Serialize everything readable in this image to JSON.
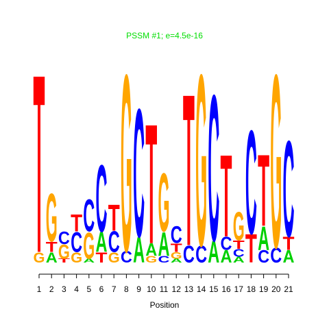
{
  "chart_data": {
    "type": "logo",
    "title": "PSSM #1; e=4.5e-16",
    "x_label": "Position",
    "xlim": [
      1,
      21
    ],
    "xticks": [
      1,
      2,
      3,
      4,
      5,
      6,
      7,
      8,
      9,
      10,
      11,
      12,
      13,
      14,
      15,
      16,
      17,
      18,
      19,
      20,
      21
    ],
    "ylim": [
      0,
      2
    ],
    "colors": {
      "A": "#00d000",
      "C": "#0000ff",
      "G": "#ffa500",
      "T": "#ff0000"
    },
    "title_color": "#00dd00",
    "x": [
      1,
      2,
      3,
      4,
      5,
      6,
      7,
      8,
      9,
      10,
      11,
      12,
      13,
      14,
      15,
      16,
      17,
      18,
      19,
      20,
      21
    ],
    "stacks": [
      {
        "letters": [
          "G",
          "T"
        ],
        "values": [
          0.11,
          1.89
        ]
      },
      {
        "letters": [
          "A",
          "T",
          "G"
        ],
        "values": [
          0.11,
          0.11,
          0.51
        ]
      },
      {
        "letters": [
          "T",
          "G",
          "C"
        ],
        "values": [
          0.04,
          0.15,
          0.13
        ]
      },
      {
        "letters": [
          "G",
          "C",
          "T"
        ],
        "values": [
          0.11,
          0.21,
          0.18
        ]
      },
      {
        "letters": [
          "A",
          "G",
          "C"
        ],
        "values": [
          0.04,
          0.28,
          0.34
        ]
      },
      {
        "letters": [
          "T",
          "A",
          "C"
        ],
        "values": [
          0.11,
          0.21,
          0.71
        ]
      },
      {
        "letters": [
          "G",
          "C",
          "T"
        ],
        "values": [
          0.11,
          0.22,
          0.28
        ]
      },
      {
        "letters": [
          "C",
          "G"
        ],
        "values": [
          0.12,
          1.88
        ]
      },
      {
        "letters": [
          "A",
          "C"
        ],
        "values": [
          0.27,
          1.36
        ]
      },
      {
        "letters": [
          "G",
          "A",
          "T"
        ],
        "values": [
          0.07,
          0.13,
          1.27
        ]
      },
      {
        "letters": [
          "C",
          "A",
          "G"
        ],
        "values": [
          0.07,
          0.25,
          0.62
        ]
      },
      {
        "letters": [
          "A",
          "G",
          "T",
          "C"
        ],
        "values": [
          0.04,
          0.07,
          0.09,
          0.18
        ]
      },
      {
        "letters": [
          "C",
          "T"
        ],
        "values": [
          0.18,
          1.61
        ]
      },
      {
        "letters": [
          "C",
          "G"
        ],
        "values": [
          0.18,
          1.82
        ]
      },
      {
        "letters": [
          "A",
          "C"
        ],
        "values": [
          0.23,
          1.55
        ]
      },
      {
        "letters": [
          "A",
          "C",
          "T"
        ],
        "values": [
          0.13,
          0.14,
          0.87
        ]
      },
      {
        "letters": [
          "A",
          "C",
          "T",
          "G"
        ],
        "values": [
          0.06,
          0.08,
          0.09,
          0.3
        ]
      },
      {
        "letters": [
          "T",
          "C"
        ],
        "values": [
          0.3,
          1.1
        ]
      },
      {
        "letters": [
          "C",
          "A",
          "T"
        ],
        "values": [
          0.13,
          0.25,
          0.76
        ]
      },
      {
        "letters": [
          "C",
          "G"
        ],
        "values": [
          0.16,
          1.84
        ]
      },
      {
        "letters": [
          "A",
          "T",
          "C"
        ],
        "values": [
          0.13,
          0.14,
          1.02
        ]
      }
    ]
  }
}
